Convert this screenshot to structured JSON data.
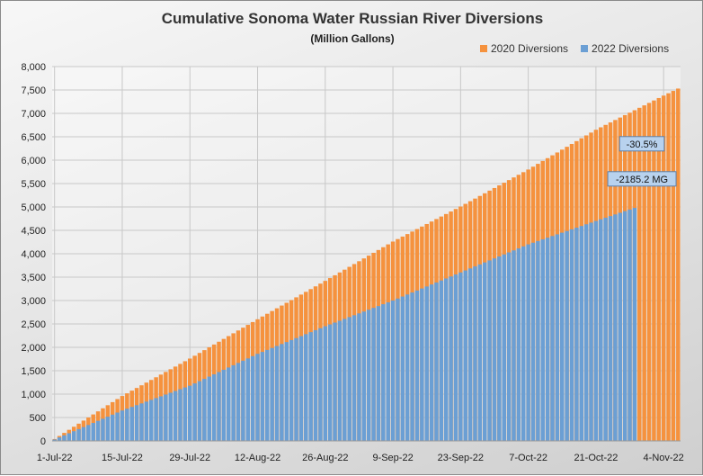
{
  "chart_data": {
    "type": "bar",
    "title": "Cumulative Sonoma Water Russian River Diversions",
    "subtitle": "(Million Gallons)",
    "xlabel": "",
    "ylabel": "",
    "ylim": [
      0,
      8000
    ],
    "yticks": [
      "0",
      "500",
      "1,000",
      "1,500",
      "2,000",
      "2,500",
      "3,000",
      "3,500",
      "4,000",
      "4,500",
      "5,000",
      "5,500",
      "6,000",
      "6,500",
      "7,000",
      "7,500",
      "8,000"
    ],
    "xticks": [
      "1-Jul-22",
      "15-Jul-22",
      "29-Jul-22",
      "12-Aug-22",
      "26-Aug-22",
      "9-Sep-22",
      "23-Sep-22",
      "7-Oct-22",
      "21-Oct-22",
      "4-Nov-22"
    ],
    "x_start": "1-Jul-22",
    "x_end": "7-Nov-22",
    "grid": true,
    "legend_position": "top-right",
    "series": [
      {
        "name": "2020 Diversions",
        "color": "#f5923e",
        "x": [
          "1-Jul-22",
          "15-Jul-22",
          "29-Jul-22",
          "12-Aug-22",
          "26-Aug-22",
          "9-Sep-22",
          "23-Sep-22",
          "7-Oct-22",
          "21-Oct-22",
          "4-Nov-22",
          "7-Nov-22"
        ],
        "values": [
          40,
          960,
          1760,
          2600,
          3420,
          4260,
          5010,
          5800,
          6650,
          7380,
          7530
        ]
      },
      {
        "name": "2022 Diversions",
        "color": "#6b9fd4",
        "x": [
          "1-Jul-22",
          "15-Jul-22",
          "29-Jul-22",
          "12-Aug-22",
          "26-Aug-22",
          "9-Sep-22",
          "23-Sep-22",
          "7-Oct-22",
          "21-Oct-22",
          "29-Oct-22"
        ],
        "values": [
          30,
          650,
          1180,
          1860,
          2450,
          3000,
          3600,
          4200,
          4700,
          4980
        ]
      }
    ],
    "annotations": [
      {
        "text": "-30.5%",
        "x": "1-Nov-22",
        "y": 6350
      },
      {
        "text": "-2185.2 MG",
        "x": "1-Nov-22",
        "y": 5600
      }
    ]
  }
}
